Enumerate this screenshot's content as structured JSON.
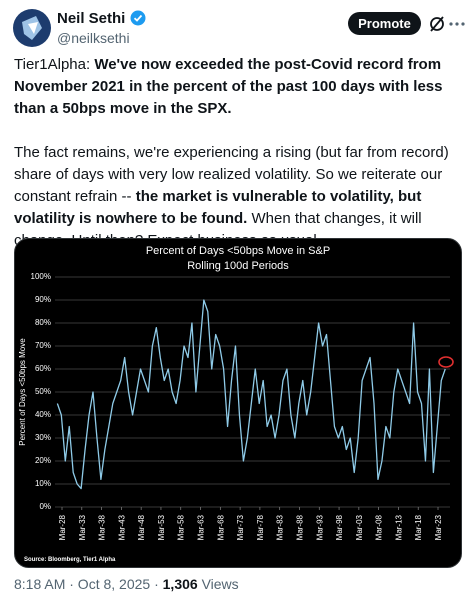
{
  "author": {
    "name": "Neil Sethi",
    "handle": "@neilksethi"
  },
  "promote_button": "Promote",
  "paragraphs": [
    [
      {
        "text": "Tier1Alpha: ",
        "bold": false
      },
      {
        "text": "We've now exceeded the post-Covid record from November 2021 in the percent of the past 100 days with less than a 50bps move in the SPX.",
        "bold": true
      }
    ],
    [
      {
        "text": "The fact remains, we're experiencing a rising (but far from record) share of days with very low realized volatility. So we reiterate our constant refrain -- ",
        "bold": false
      },
      {
        "text": "the market is vulnerable to volatility, but volatility is nowhere to be found.",
        "bold": true
      },
      {
        "text": " When that changes, it will change. Until then? Expect business as usual.",
        "bold": false
      }
    ]
  ],
  "footer": {
    "time": "8:18 AM · Oct 8, 2025 ·",
    "views_count": "1,306",
    "views_label": "Views"
  },
  "chart_data": {
    "type": "line",
    "title": "Percent of Days <50bps Move in S&P",
    "subtitle": "Rolling 100d Periods",
    "y_label": "Percent of Days <50bps Move",
    "source": "Source: Bloomberg, Tier1 Alpha",
    "grid": true,
    "xlim": [
      1926.4,
      2026.2
    ],
    "ylim": [
      0,
      100
    ],
    "xticks": [
      {
        "value": 1928.17,
        "label": "Mar-28"
      },
      {
        "value": 1933.17,
        "label": "Mar-33"
      },
      {
        "value": 1938.17,
        "label": "Mar-38"
      },
      {
        "value": 1943.17,
        "label": "Mar-43"
      },
      {
        "value": 1948.17,
        "label": "Mar-48"
      },
      {
        "value": 1953.17,
        "label": "Mar-53"
      },
      {
        "value": 1958.17,
        "label": "Mar-58"
      },
      {
        "value": 1963.17,
        "label": "Mar-63"
      },
      {
        "value": 1968.17,
        "label": "Mar-68"
      },
      {
        "value": 1973.17,
        "label": "Mar-73"
      },
      {
        "value": 1978.17,
        "label": "Mar-78"
      },
      {
        "value": 1983.17,
        "label": "Mar-83"
      },
      {
        "value": 1988.17,
        "label": "Mar-88"
      },
      {
        "value": 1993.17,
        "label": "Mar-93"
      },
      {
        "value": 1998.17,
        "label": "Mar-98"
      },
      {
        "value": 2003.17,
        "label": "Mar-03"
      },
      {
        "value": 2008.17,
        "label": "Mar-08"
      },
      {
        "value": 2013.17,
        "label": "Mar-13"
      },
      {
        "value": 2018.17,
        "label": "Mar-18"
      },
      {
        "value": 2023.17,
        "label": "Mar-23"
      }
    ],
    "yticks": [
      {
        "value": 0,
        "label": "0%"
      },
      {
        "value": 10,
        "label": "10%"
      },
      {
        "value": 20,
        "label": "20%"
      },
      {
        "value": 30,
        "label": "30%"
      },
      {
        "value": 40,
        "label": "40%"
      },
      {
        "value": 50,
        "label": "50%"
      },
      {
        "value": 60,
        "label": "60%"
      },
      {
        "value": 70,
        "label": "70%"
      },
      {
        "value": 80,
        "label": "80%"
      },
      {
        "value": 90,
        "label": "90%"
      },
      {
        "value": 100,
        "label": "100%"
      }
    ],
    "series": [
      {
        "name": "Percent of Days <50bps Move",
        "color": "#8fcbe8",
        "x": [
          1927,
          1928,
          1929,
          1930,
          1931,
          1932,
          1933,
          1934,
          1935,
          1936,
          1937,
          1938,
          1939,
          1940,
          1941,
          1942,
          1943,
          1944,
          1945,
          1946,
          1947,
          1948,
          1949,
          1950,
          1951,
          1952,
          1953,
          1954,
          1955,
          1956,
          1957,
          1958,
          1959,
          1960,
          1961,
          1962,
          1963,
          1964,
          1965,
          1966,
          1967,
          1968,
          1969,
          1970,
          1971,
          1972,
          1973,
          1974,
          1975,
          1976,
          1977,
          1978,
          1979,
          1980,
          1981,
          1982,
          1983,
          1984,
          1985,
          1986,
          1987,
          1988,
          1989,
          1990,
          1991,
          1992,
          1993,
          1994,
          1995,
          1996,
          1997,
          1998,
          1999,
          2000,
          2001,
          2002,
          2003,
          2004,
          2005,
          2006,
          2007,
          2008,
          2009,
          2010,
          2011,
          2012,
          2013,
          2014,
          2015,
          2016,
          2017,
          2018,
          2019,
          2020,
          2021,
          2022,
          2023,
          2024,
          2025
        ],
        "values": [
          45,
          40,
          20,
          35,
          15,
          10,
          8,
          25,
          40,
          50,
          30,
          12,
          25,
          35,
          45,
          50,
          55,
          65,
          50,
          40,
          50,
          60,
          55,
          50,
          70,
          78,
          65,
          55,
          60,
          50,
          45,
          55,
          70,
          65,
          80,
          50,
          70,
          90,
          85,
          60,
          75,
          70,
          60,
          35,
          55,
          70,
          40,
          20,
          30,
          45,
          60,
          45,
          55,
          35,
          40,
          30,
          40,
          55,
          60,
          40,
          30,
          45,
          55,
          40,
          50,
          65,
          80,
          70,
          75,
          55,
          35,
          30,
          35,
          25,
          30,
          15,
          30,
          55,
          60,
          65,
          45,
          12,
          20,
          35,
          30,
          50,
          60,
          55,
          50,
          45,
          80,
          50,
          45,
          20,
          60,
          15,
          35,
          55,
          60
        ]
      }
    ]
  }
}
